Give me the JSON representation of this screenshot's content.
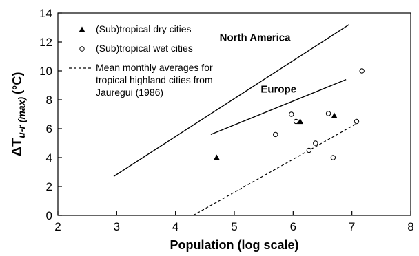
{
  "chart_data": {
    "type": "scatter",
    "xlabel": "Population (log scale)",
    "ylabel_main": "ΔT",
    "ylabel_sub": "u-r (max)",
    "ylabel_unit": "(°C)",
    "xlim": [
      2,
      8
    ],
    "ylim": [
      0,
      14
    ],
    "x_ticks": [
      2,
      3,
      4,
      5,
      6,
      7,
      8
    ],
    "y_ticks": [
      0,
      2,
      4,
      6,
      8,
      10,
      12,
      14
    ],
    "legend_placement": "top-left",
    "grid": false,
    "series": [
      {
        "name": "(Sub)tropical dry cities",
        "marker": "filled-triangle",
        "points": [
          {
            "x": 4.7,
            "y": 4.0
          },
          {
            "x": 6.12,
            "y": 6.5
          },
          {
            "x": 6.7,
            "y": 6.9
          }
        ]
      },
      {
        "name": "(Sub)tropical wet cities",
        "marker": "open-circle",
        "points": [
          {
            "x": 5.7,
            "y": 5.6
          },
          {
            "x": 5.97,
            "y": 7.0
          },
          {
            "x": 6.05,
            "y": 6.5
          },
          {
            "x": 6.27,
            "y": 4.5
          },
          {
            "x": 6.38,
            "y": 5.0
          },
          {
            "x": 6.6,
            "y": 7.05
          },
          {
            "x": 6.68,
            "y": 4.0
          },
          {
            "x": 7.08,
            "y": 6.5
          },
          {
            "x": 7.17,
            "y": 10.0
          }
        ]
      }
    ],
    "lines": [
      {
        "label": "North America",
        "style": "solid",
        "x": [
          2.95,
          6.95
        ],
        "y": [
          2.7,
          13.2
        ]
      },
      {
        "label": "Europe",
        "style": "solid",
        "x": [
          4.6,
          6.9
        ],
        "y": [
          5.6,
          9.4
        ]
      },
      {
        "label": "Mean monthly averages for tropical highland cities from Jauregui (1986)",
        "style": "dashed",
        "x": [
          4.3,
          7.1
        ],
        "y": [
          0.0,
          6.4
        ]
      }
    ],
    "legend_entries": [
      {
        "text": "(Sub)tropical dry cities",
        "marker": "filled-triangle"
      },
      {
        "text": "(Sub)tropical wet cities",
        "marker": "open-circle"
      },
      {
        "lines": [
          "Mean monthly averages for",
          "tropical highland cities from",
          "Jauregui (1986)"
        ],
        "marker": "dashed-line"
      }
    ],
    "annotations": [
      {
        "text": "North America",
        "x": 4.75,
        "y": 12.3
      },
      {
        "text": "Europe",
        "x": 5.45,
        "y": 8.75
      }
    ]
  }
}
